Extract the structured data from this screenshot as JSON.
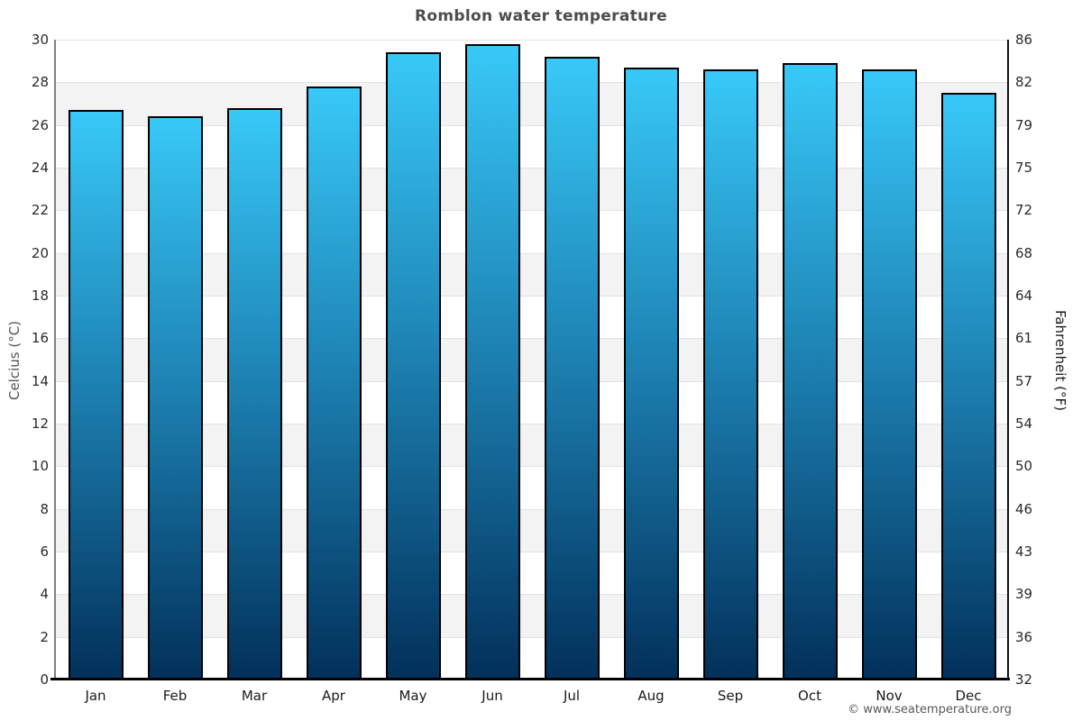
{
  "title": "Romblon water temperature",
  "axes": {
    "left_label": "Celcius (°C)",
    "right_label": "Fahrenheit (°F)"
  },
  "footer": {
    "copyright": "© www.seatemperature.org"
  },
  "chart_data": {
    "type": "bar",
    "title": "Romblon water temperature",
    "categories": [
      "Jan",
      "Feb",
      "Mar",
      "Apr",
      "May",
      "Jun",
      "Jul",
      "Aug",
      "Sep",
      "Oct",
      "Nov",
      "Dec"
    ],
    "values": [
      26.7,
      26.4,
      26.8,
      27.8,
      29.4,
      29.8,
      29.2,
      28.7,
      28.6,
      28.9,
      28.6,
      27.5
    ],
    "ylabel_left": "Celcius (°C)",
    "ylabel_right": "Fahrenheit (°F)",
    "ylim": [
      0,
      30
    ],
    "yticks_celsius": [
      0,
      2,
      4,
      6,
      8,
      10,
      12,
      14,
      16,
      18,
      20,
      22,
      24,
      26,
      28,
      30
    ],
    "yticks_fahrenheit": [
      32,
      36,
      39,
      43,
      46,
      50,
      54,
      57,
      61,
      64,
      68,
      72,
      75,
      79,
      82,
      86
    ],
    "grid": "horizontal gridline every 2°C with alternating white/gray bands",
    "legend": "none",
    "colors": {
      "bar_gradient_top": "#38c9f8",
      "bar_gradient_mid": "#1e86b7",
      "bar_gradient_bottom": "#02305a",
      "bar_border": "#000000",
      "band_gray": "#f3f3f3",
      "band_white": "#ffffff",
      "gridline": "#e2e2e2",
      "axis_bottom": "#000000",
      "axis_left_line": "#7f7f7f",
      "title_color": "#4d4d4d"
    }
  }
}
